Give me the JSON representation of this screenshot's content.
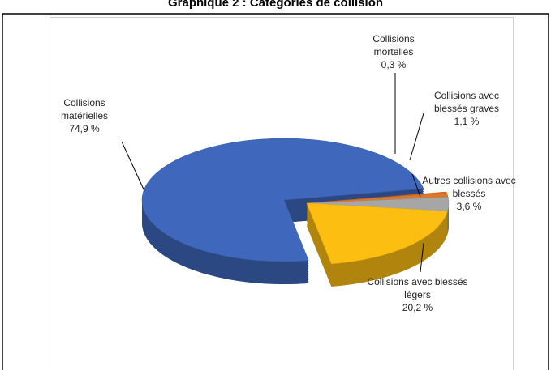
{
  "chart_data": {
    "type": "pie3d",
    "title": "Graphique 2 : Catégories de collision",
    "categories": [
      "Collisions matérielles",
      "Collisions mortelles",
      "Collisions avec blessés graves",
      "Autres collisions avec blessés",
      "Collisions avec blessés légers"
    ],
    "values": [
      74.9,
      0.3,
      1.1,
      3.6,
      20.2
    ],
    "value_labels": [
      "74,9 %",
      "0,3 %",
      "1,1 %",
      "3,6 %",
      "20,2 %"
    ],
    "colors": [
      "#3f67bb",
      "#e2681c",
      "#d9782f",
      "#a6a6a6",
      "#fdbe12"
    ]
  }
}
